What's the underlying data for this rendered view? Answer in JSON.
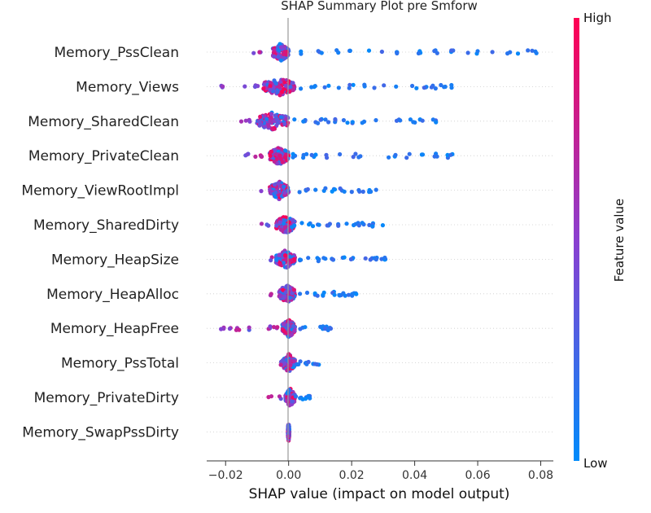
{
  "chart_data": {
    "type": "scatter",
    "title": "SHAP Summary Plot pre Smforw",
    "xlabel": "SHAP value (impact on model output)",
    "xlim": [
      -0.026,
      0.084
    ],
    "xticks": [
      {
        "value": -0.02,
        "label": "−0.02"
      },
      {
        "value": 0.0,
        "label": "0.00"
      },
      {
        "value": 0.02,
        "label": "0.02"
      },
      {
        "value": 0.04,
        "label": "0.04"
      },
      {
        "value": 0.06,
        "label": "0.06"
      },
      {
        "value": 0.08,
        "label": "0.08"
      }
    ],
    "features": [
      {
        "name": "Memory_PssClean",
        "core_low": -0.005,
        "core_high": 0.0,
        "tail": [
          -0.011,
          -0.009,
          0.004,
          0.01,
          0.015,
          0.02,
          0.025,
          0.03,
          0.035,
          0.042,
          0.047,
          0.052,
          0.057,
          0.06,
          0.064,
          0.07,
          0.073,
          0.076,
          0.078
        ]
      },
      {
        "name": "Memory_Views",
        "core_low": -0.008,
        "core_high": 0.002,
        "tail": [
          -0.021,
          -0.014,
          -0.01,
          0.004,
          0.008,
          0.012,
          0.016,
          0.02,
          0.024,
          0.027,
          0.03,
          0.034,
          0.04,
          0.043,
          0.046,
          0.049,
          0.052
        ]
      },
      {
        "name": "Memory_SharedClean",
        "core_low": -0.01,
        "core_high": 0.0,
        "tail": [
          -0.015,
          -0.013,
          0.002,
          0.005,
          0.008,
          0.01,
          0.012,
          0.015,
          0.018,
          0.021,
          0.024,
          0.027,
          0.035,
          0.038,
          0.04,
          0.042,
          0.046
        ]
      },
      {
        "name": "Memory_PrivateClean",
        "core_low": -0.006,
        "core_high": 0.0,
        "tail": [
          -0.013,
          -0.011,
          -0.009,
          0.002,
          0.005,
          0.008,
          0.012,
          0.016,
          0.02,
          0.022,
          0.031,
          0.034,
          0.038,
          0.042,
          0.047,
          0.05,
          0.052
        ]
      },
      {
        "name": "Memory_ViewRootImpl",
        "core_low": -0.006,
        "core_high": 0.0,
        "tail": [
          -0.009,
          0.003,
          0.006,
          0.009,
          0.012,
          0.014,
          0.017,
          0.02,
          0.023,
          0.026,
          0.027
        ]
      },
      {
        "name": "Memory_SharedDirty",
        "core_low": -0.004,
        "core_high": 0.002,
        "tail": [
          -0.009,
          -0.007,
          0.004,
          0.007,
          0.01,
          0.013,
          0.016,
          0.019,
          0.02,
          0.022,
          0.024,
          0.026,
          0.027,
          0.03
        ]
      },
      {
        "name": "Memory_HeapSize",
        "core_low": -0.004,
        "core_high": 0.002,
        "tail": [
          -0.006,
          0.004,
          0.006,
          0.009,
          0.011,
          0.014,
          0.017,
          0.02,
          0.024,
          0.026,
          0.028,
          0.03,
          0.031
        ]
      },
      {
        "name": "Memory_HeapAlloc",
        "core_low": -0.003,
        "core_high": 0.002,
        "tail": [
          -0.005,
          0.003,
          0.006,
          0.009,
          0.011,
          0.014,
          0.016,
          0.018,
          0.019,
          0.02,
          0.021
        ]
      },
      {
        "name": "Memory_HeapFree",
        "core_low": -0.002,
        "core_high": 0.002,
        "tail": [
          -0.021,
          -0.019,
          -0.016,
          -0.013,
          -0.006,
          -0.004,
          0.004,
          0.005,
          0.01,
          0.011,
          0.012,
          0.013
        ]
      },
      {
        "name": "Memory_PssTotal",
        "core_low": -0.002,
        "core_high": 0.002,
        "tail": [
          -0.003,
          0.003,
          0.005,
          0.006,
          0.007,
          0.008,
          0.009
        ]
      },
      {
        "name": "Memory_PrivateDirty",
        "core_low": -0.001,
        "core_high": 0.002,
        "tail": [
          -0.007,
          -0.005,
          -0.003,
          0.003,
          0.004,
          0.005,
          0.006,
          0.007
        ]
      },
      {
        "name": "Memory_SwapPssDirty",
        "core_low": -0.0002,
        "core_high": 0.0002,
        "tail": []
      }
    ],
    "colorbar": {
      "label": "Feature value",
      "high_label": "High",
      "low_label": "Low",
      "high_color": "#ff0052",
      "mid_color": "#8b3fd0",
      "low_color": "#008bfb"
    }
  }
}
